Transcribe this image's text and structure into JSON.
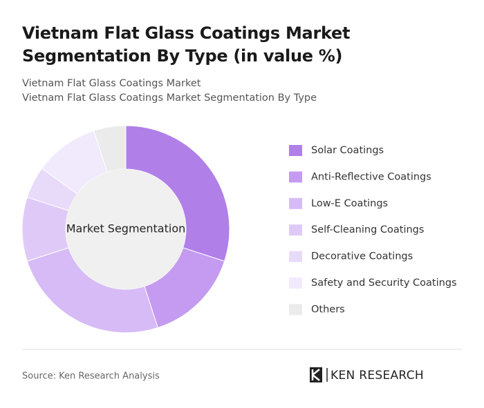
{
  "chart_data": {
    "type": "pie",
    "title": "Vietnam Flat Glass Coatings Market Segmentation By Type (in value %)",
    "subtitles": [
      "Vietnam Flat Glass Coatings Market",
      "Vietnam Flat Glass Coatings Market Segmentation By Type"
    ],
    "center_label": "Market Segmentation",
    "categories": [
      "Solar Coatings",
      "Anti-Reflective Coatings",
      "Low-E Coatings",
      "Self-Cleaning Coatings",
      "Decorative Coatings",
      "Safety and Security Coatings",
      "Others"
    ],
    "values": [
      30,
      15,
      25,
      10,
      5,
      10,
      5
    ],
    "colors": [
      "#b07fe8",
      "#c49bf0",
      "#d6bbf6",
      "#dfcaf7",
      "#e8dbfa",
      "#f1eafc",
      "#ebebeb"
    ],
    "source": "Source: Ken Research Analysis",
    "brand": "KEN RESEARCH"
  }
}
